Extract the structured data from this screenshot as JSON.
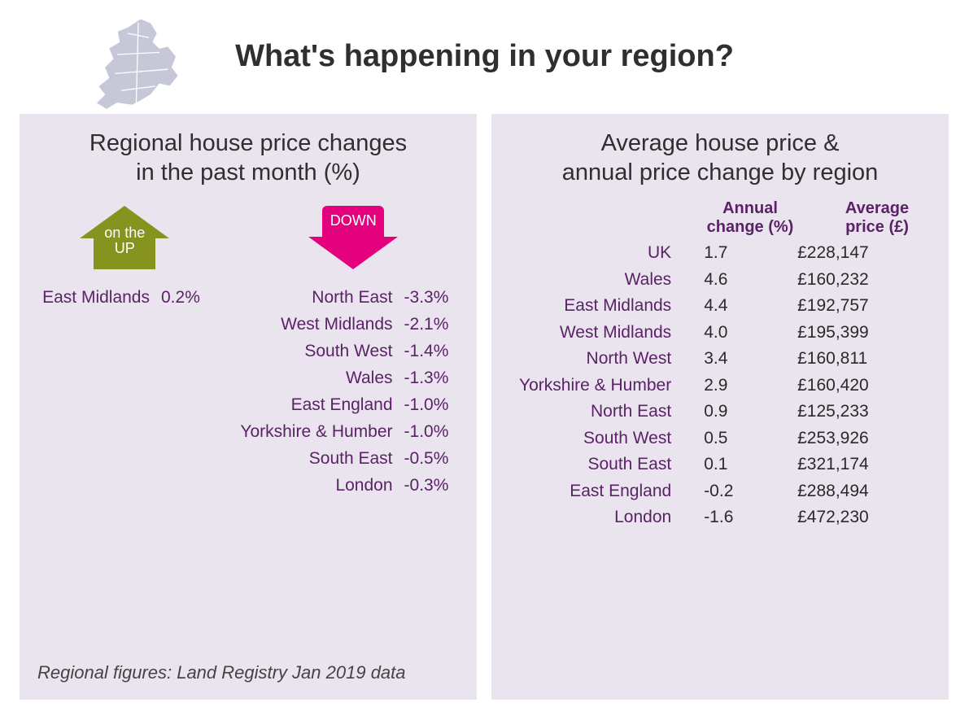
{
  "title": "What's happening in your region?",
  "colors": {
    "panel_bg": "#e9e4ee",
    "text_purple": "#5b2267",
    "text_dark": "#2f2f2f",
    "up_arrow": "#87931f",
    "down_arrow": "#e5007d",
    "map_fill": "#c6c7d7"
  },
  "left_panel": {
    "title_line1": "Regional house price changes",
    "title_line2": "in the past month (%)",
    "title_fontsize": 29,
    "up_label_line1": "on the",
    "up_label_line2": "UP",
    "down_label": "DOWN",
    "row_fontsize": 21,
    "up_rows": [
      {
        "region": "East Midlands",
        "value": "0.2%"
      }
    ],
    "down_rows": [
      {
        "region": "North East",
        "value": "-3.3%"
      },
      {
        "region": "West Midlands",
        "value": "-2.1%"
      },
      {
        "region": "South West",
        "value": "-1.4%"
      },
      {
        "region": "Wales",
        "value": "-1.3%"
      },
      {
        "region": "East England",
        "value": "-1.0%"
      },
      {
        "region": "Yorkshire & Humber",
        "value": "-1.0%"
      },
      {
        "region": "South East",
        "value": "-0.5%"
      },
      {
        "region": "London",
        "value": "-0.3%"
      }
    ],
    "footnote": "Regional figures: Land Registry Jan 2019 data"
  },
  "right_panel": {
    "title_line1": "Average house price &",
    "title_line2": "annual price change by region",
    "title_fontsize": 29,
    "header": {
      "col2_line1": "Annual",
      "col2_line2": "change (%)",
      "col3_line1": "Average",
      "col3_line2": "price (£)"
    },
    "header_fontsize": 20,
    "row_fontsize": 21,
    "rows": [
      {
        "region": "UK",
        "annual": "1.7",
        "avg": "£228,147"
      },
      {
        "region": "Wales",
        "annual": "4.6",
        "avg": "£160,232"
      },
      {
        "region": "East Midlands",
        "annual": "4.4",
        "avg": "£192,757"
      },
      {
        "region": "West Midlands",
        "annual": "4.0",
        "avg": "£195,399"
      },
      {
        "region": "North West",
        "annual": "3.4",
        "avg": "£160,811"
      },
      {
        "region": "Yorkshire & Humber",
        "annual": "2.9",
        "avg": "£160,420"
      },
      {
        "region": "North East",
        "annual": "0.9",
        "avg": "£125,233"
      },
      {
        "region": "South West",
        "annual": "0.5",
        "avg": "£253,926"
      },
      {
        "region": "South East",
        "annual": "0.1",
        "avg": "£321,174"
      },
      {
        "region": "East England",
        "annual": "-0.2",
        "avg": "£288,494"
      },
      {
        "region": "London",
        "annual": "-1.6",
        "avg": "£472,230"
      }
    ]
  }
}
